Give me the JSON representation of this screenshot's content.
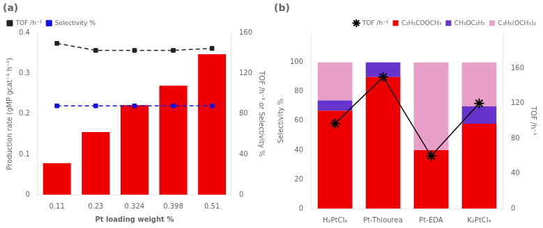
{
  "chart_data": [
    {
      "type": "bar",
      "title": "(a)",
      "categories": [
        "0.11",
        "0.23",
        "0.324",
        "0.398",
        "0.51"
      ],
      "xlabel": "Pt loading weight %",
      "ylabel": "Production rate (gMP gcat⁻¹ h⁻¹)",
      "y2label": "TOF /h⁻¹ or Selectivity %",
      "series": [
        {
          "type": "bar",
          "color": "#ee0000",
          "values": [
            0.078,
            0.155,
            0.222,
            0.27,
            0.348
          ]
        },
        {
          "name": "TOF /h⁻¹",
          "type": "line",
          "axis": "y2",
          "color": "#222222",
          "marker": "square",
          "line_style": "dashed",
          "values": [
            150,
            143,
            143,
            143,
            145
          ]
        },
        {
          "name": "Selectivity %",
          "type": "line",
          "axis": "y2",
          "color": "#1111dd",
          "marker": "square",
          "line_style": "dashed",
          "values": [
            88,
            88,
            88,
            88,
            88
          ]
        }
      ],
      "ylim": [
        0,
        0.4
      ],
      "yticks": [
        0,
        0.1,
        0.2,
        0.3,
        0.4
      ],
      "y2lim": [
        0,
        160
      ],
      "y2ticks": [
        0,
        40,
        80,
        120,
        160
      ],
      "grid": false,
      "legend": "upper left"
    },
    {
      "type": "bar",
      "title": "(b)",
      "categories": [
        "H₂PtCl₆",
        "Pt-Thiourea",
        "Pt-EDA",
        "K₂PtCl₄"
      ],
      "ylabel": "Selectivity %",
      "y2label": "TOF /h⁻¹",
      "series": [
        {
          "name": "C₂H₅COOCH₃",
          "type": "bar",
          "color": "#ee0000",
          "values": [
            67,
            90,
            40,
            58
          ]
        },
        {
          "name": "CH₃OC₂H₅",
          "type": "bar",
          "color": "#6633cc",
          "values": [
            7,
            10,
            0,
            12
          ]
        },
        {
          "name": "C₃H₆(OCH₃)₂",
          "type": "bar",
          "color": "#e8a0c8",
          "values": [
            26,
            0,
            60,
            30
          ]
        },
        {
          "name": "TOF /h⁻¹",
          "type": "line",
          "axis": "y2",
          "color": "#000000",
          "marker": "star",
          "line_style": "solid",
          "values": [
            97,
            150,
            60,
            120
          ]
        }
      ],
      "stacked": true,
      "ylim": [
        0,
        120
      ],
      "yticks": [
        0,
        20,
        40,
        60,
        80,
        100
      ],
      "y2lim": [
        0,
        200
      ],
      "y2ticks": [
        0,
        40,
        80,
        120,
        160
      ],
      "grid": false,
      "legend": "upper right"
    }
  ]
}
